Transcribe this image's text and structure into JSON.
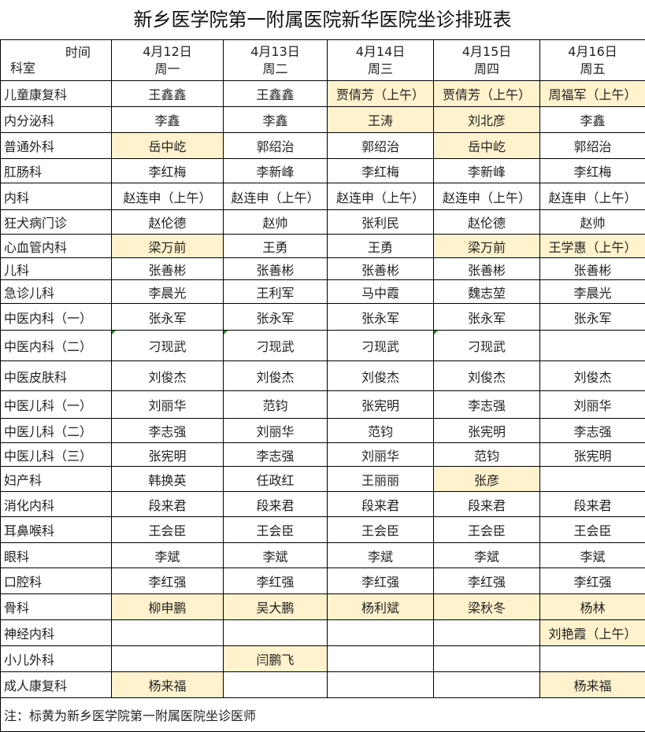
{
  "title": "新乡医学院第一附属医院新华医院坐诊排班表",
  "header": {
    "corner_time": "时间",
    "corner_dept": "科室",
    "days": [
      {
        "date": "4月12日",
        "weekday": "周一"
      },
      {
        "date": "4月13日",
        "weekday": "周二"
      },
      {
        "date": "4月14日",
        "weekday": "周三"
      },
      {
        "date": "4月15日",
        "weekday": "周四"
      },
      {
        "date": "4月16日",
        "weekday": "周五"
      }
    ]
  },
  "highlight_color": "#fff2cc",
  "rows": [
    {
      "dept": "儿童康复科",
      "cells": [
        "王鑫鑫",
        "王鑫鑫",
        "贾倩芳（上午）",
        "贾倩芳（上午）",
        "周福军（上午）"
      ],
      "hl": [
        0,
        0,
        1,
        1,
        1
      ]
    },
    {
      "dept": "内分泌科",
      "cells": [
        "李鑫",
        "李鑫",
        "王涛",
        "刘北彦",
        "李鑫"
      ],
      "hl": [
        0,
        0,
        1,
        1,
        0
      ]
    },
    {
      "dept": "普通外科",
      "cells": [
        "岳中屹",
        "郭绍治",
        "郭绍治",
        "岳中屹",
        "郭绍治"
      ],
      "hl": [
        1,
        0,
        0,
        1,
        0
      ]
    },
    {
      "dept": "肛肠科",
      "cells": [
        "李红梅",
        "李新峰",
        "李红梅",
        "李新峰",
        "李红梅"
      ],
      "hl": [
        0,
        0,
        0,
        0,
        0
      ]
    },
    {
      "dept": "内科",
      "cells": [
        "赵连申（上午）",
        "赵连申（上午）",
        "赵连申（上午）",
        "赵连申（上午）",
        "赵连申（上午）"
      ],
      "hl": [
        0,
        0,
        0,
        0,
        0
      ]
    },
    {
      "dept": "狂犬病门诊",
      "cells": [
        "赵伦德",
        "赵帅",
        "张利民",
        "赵伦德",
        "赵帅"
      ],
      "hl": [
        0,
        0,
        0,
        0,
        0
      ]
    },
    {
      "dept": "心血管内科",
      "cells": [
        "梁万前",
        "王勇",
        "王勇",
        "梁万前",
        "王学惠（上午）"
      ],
      "hl": [
        1,
        0,
        0,
        1,
        1
      ]
    },
    {
      "dept": "儿科",
      "cells": [
        "张善彬",
        "张善彬",
        "张善彬",
        "张善彬",
        "张善彬"
      ],
      "hl": [
        0,
        0,
        0,
        0,
        0
      ]
    },
    {
      "dept": "急诊儿科",
      "cells": [
        "李晨光",
        "王利军",
        "马中霞",
        "魏志堃",
        "李晨光"
      ],
      "hl": [
        0,
        0,
        0,
        0,
        0
      ]
    },
    {
      "dept": "中医内科（一）",
      "cells": [
        "张永军",
        "张永军",
        "张永军",
        "张永军",
        "张永军"
      ],
      "hl": [
        0,
        0,
        0,
        0,
        0
      ]
    },
    {
      "dept": "中医内科（二）",
      "cells": [
        "刁现武",
        "刁现武",
        "刁现武",
        "刁现武",
        ""
      ],
      "hl": [
        0,
        0,
        0,
        0,
        0
      ]
    },
    {
      "dept": "中医皮肤科",
      "cells": [
        "刘俊杰",
        "刘俊杰",
        "刘俊杰",
        "刘俊杰",
        "刘俊杰"
      ],
      "hl": [
        0,
        0,
        0,
        0,
        0
      ]
    },
    {
      "dept": "中医儿科（一）",
      "cells": [
        "刘丽华",
        "范钧",
        "张宪明",
        "李志强",
        "刘丽华"
      ],
      "hl": [
        0,
        0,
        0,
        0,
        0
      ]
    },
    {
      "dept": "中医儿科（二）",
      "cells": [
        "李志强",
        "刘丽华",
        "范钧",
        "张宪明",
        "李志强"
      ],
      "hl": [
        0,
        0,
        0,
        0,
        0
      ]
    },
    {
      "dept": "中医儿科（三）",
      "cells": [
        "张宪明",
        "李志强",
        "刘丽华",
        "范钧",
        "张宪明"
      ],
      "hl": [
        0,
        0,
        0,
        0,
        0
      ]
    },
    {
      "dept": "妇产科",
      "cells": [
        "韩换英",
        "任政红",
        "王丽丽",
        "张彦",
        ""
      ],
      "hl": [
        0,
        0,
        0,
        1,
        0
      ]
    },
    {
      "dept": "消化内科",
      "cells": [
        "段来君",
        "段来君",
        "段来君",
        "段来君",
        "段来君"
      ],
      "hl": [
        0,
        0,
        0,
        0,
        0
      ]
    },
    {
      "dept": "耳鼻喉科",
      "cells": [
        "王会臣",
        "王会臣",
        "王会臣",
        "王会臣",
        "王会臣"
      ],
      "hl": [
        0,
        0,
        0,
        0,
        0
      ]
    },
    {
      "dept": "眼科",
      "cells": [
        "李斌",
        "李斌",
        "李斌",
        "李斌",
        "李斌"
      ],
      "hl": [
        0,
        0,
        0,
        0,
        0
      ]
    },
    {
      "dept": "口腔科",
      "cells": [
        "李红强",
        "李红强",
        "李红强",
        "李红强",
        "李红强"
      ],
      "hl": [
        0,
        0,
        0,
        0,
        0
      ]
    },
    {
      "dept": "骨科",
      "cells": [
        "柳申鹏",
        "吴大鹏",
        "杨利斌",
        "梁秋冬",
        "杨林"
      ],
      "hl": [
        1,
        1,
        1,
        1,
        1
      ]
    },
    {
      "dept": "神经内科",
      "cells": [
        "",
        "",
        "",
        "",
        "刘艳霞（上午）"
      ],
      "hl": [
        0,
        0,
        0,
        0,
        1
      ]
    },
    {
      "dept": "小儿外科",
      "cells": [
        "",
        "闫鹏飞",
        "",
        "",
        ""
      ],
      "hl": [
        0,
        1,
        0,
        0,
        0
      ]
    },
    {
      "dept": "成人康复科",
      "cells": [
        "杨来福",
        "",
        "",
        "",
        "杨来福"
      ],
      "hl": [
        1,
        0,
        0,
        0,
        1
      ]
    }
  ],
  "note": "注：标黄为新乡医学院第一附属医院坐诊医师"
}
